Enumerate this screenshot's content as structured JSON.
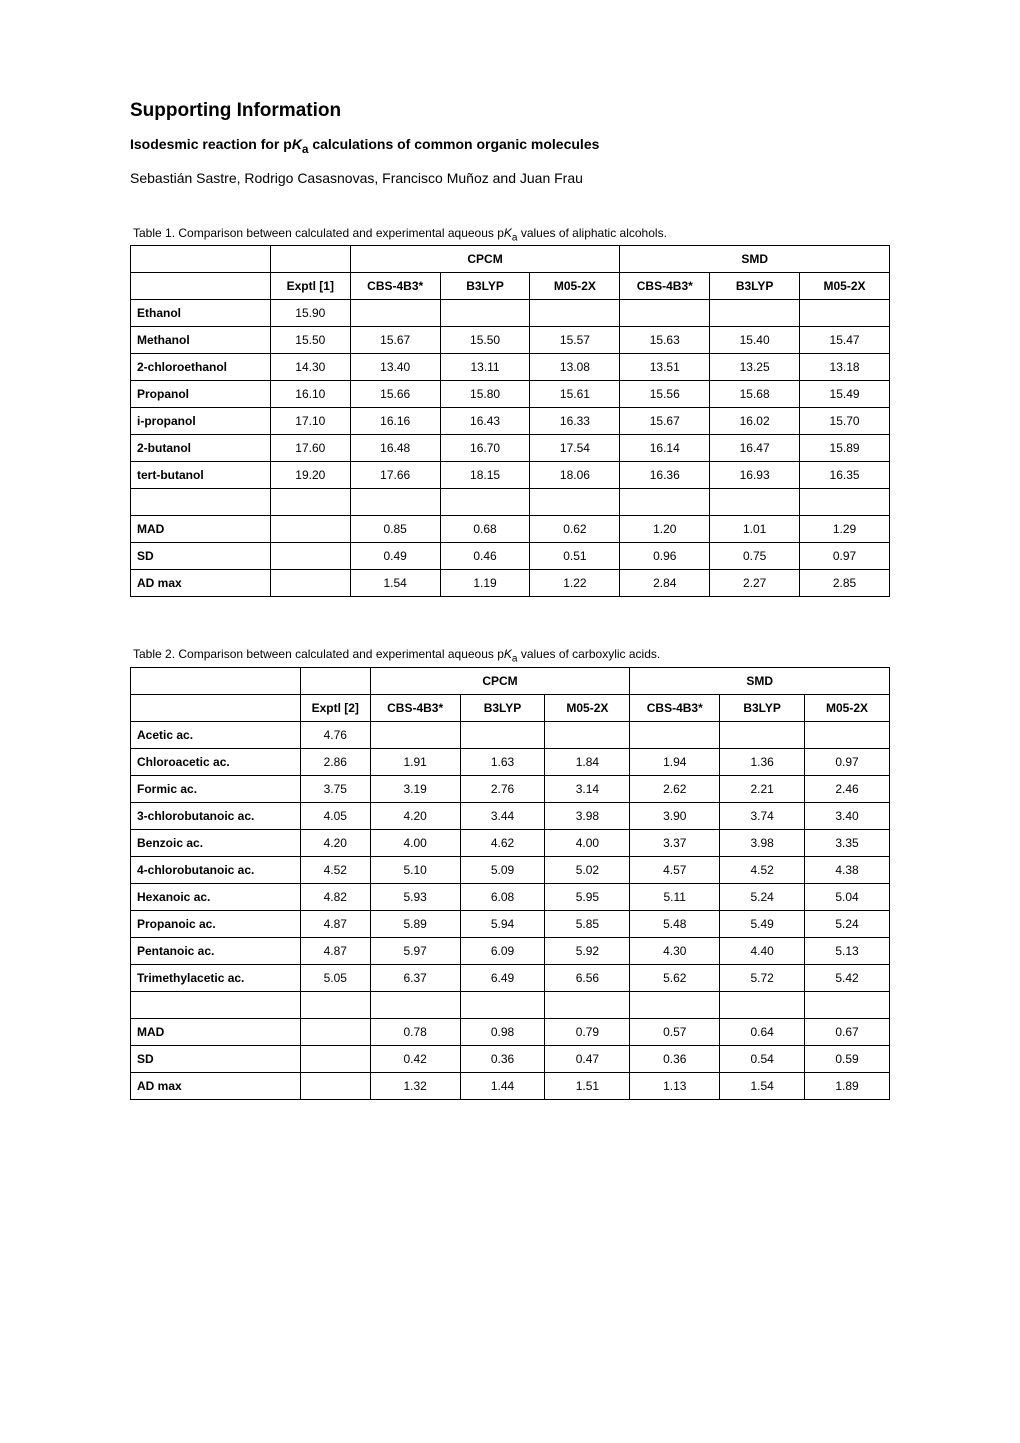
{
  "heading": "Supporting Information",
  "subtitle_prefix": "Isodesmic reaction for p",
  "subtitle_ka": "K",
  "subtitle_sub": "a",
  "subtitle_suffix": " calculations of common organic molecules",
  "authors": "Sebastián Sastre, Rodrigo Casasnovas, Francisco Muñoz and Juan Frau",
  "table1": {
    "caption_prefix": "Table 1. Comparison between calculated and experimental aqueous p",
    "caption_ka": "K",
    "caption_sub": "a",
    "caption_suffix": " values of aliphatic alcohols.",
    "group_cpcm": "CPCM",
    "group_smd": "SMD",
    "col_exptl": "Exptl [1]",
    "col_cbs": "CBS-4B3*",
    "col_b3lyp": "B3LYP",
    "col_m052x": "M05-2X",
    "rows": [
      {
        "name": "Ethanol",
        "exptl": "15.90",
        "c1": "",
        "c2": "",
        "c3": "",
        "s1": "",
        "s2": "",
        "s3": ""
      },
      {
        "name": "Methanol",
        "exptl": "15.50",
        "c1": "15.67",
        "c2": "15.50",
        "c3": "15.57",
        "s1": "15.63",
        "s2": "15.40",
        "s3": "15.47"
      },
      {
        "name": "2-chloroethanol",
        "exptl": "14.30",
        "c1": "13.40",
        "c2": "13.11",
        "c3": "13.08",
        "s1": "13.51",
        "s2": "13.25",
        "s3": "13.18"
      },
      {
        "name": "Propanol",
        "exptl": "16.10",
        "c1": "15.66",
        "c2": "15.80",
        "c3": "15.61",
        "s1": "15.56",
        "s2": "15.68",
        "s3": "15.49"
      },
      {
        "name": "i-propanol",
        "exptl": "17.10",
        "c1": "16.16",
        "c2": "16.43",
        "c3": "16.33",
        "s1": "15.67",
        "s2": "16.02",
        "s3": "15.70"
      },
      {
        "name": "2-butanol",
        "exptl": "17.60",
        "c1": "16.48",
        "c2": "16.70",
        "c3": "17.54",
        "s1": "16.14",
        "s2": "16.47",
        "s3": "15.89"
      },
      {
        "name": "tert-butanol",
        "exptl": "19.20",
        "c1": "17.66",
        "c2": "18.15",
        "c3": "18.06",
        "s1": "16.36",
        "s2": "16.93",
        "s3": "16.35"
      }
    ],
    "stats": [
      {
        "name": "MAD",
        "c1": "0.85",
        "c2": "0.68",
        "c3": "0.62",
        "s1": "1.20",
        "s2": "1.01",
        "s3": "1.29"
      },
      {
        "name": "SD",
        "c1": "0.49",
        "c2": "0.46",
        "c3": "0.51",
        "s1": "0.96",
        "s2": "0.75",
        "s3": "0.97"
      },
      {
        "name": "AD max",
        "c1": "1.54",
        "c2": "1.19",
        "c3": "1.22",
        "s1": "2.84",
        "s2": "2.27",
        "s3": "2.85"
      }
    ]
  },
  "table2": {
    "caption_prefix": "Table 2. Comparison between calculated and experimental aqueous p",
    "caption_ka": "K",
    "caption_sub": "a",
    "caption_suffix": " values of carboxylic acids.",
    "group_cpcm": "CPCM",
    "group_smd": "SMD",
    "col_exptl": "Exptl [2]",
    "col_cbs": "CBS-4B3*",
    "col_b3lyp": "B3LYP",
    "col_m052x": "M05-2X",
    "rows": [
      {
        "name": "Acetic ac.",
        "exptl": "4.76",
        "c1": "",
        "c2": "",
        "c3": "",
        "s1": "",
        "s2": "",
        "s3": ""
      },
      {
        "name": "Chloroacetic ac.",
        "exptl": "2.86",
        "c1": "1.91",
        "c2": "1.63",
        "c3": "1.84",
        "s1": "1.94",
        "s2": "1.36",
        "s3": "0.97"
      },
      {
        "name": "Formic ac.",
        "exptl": "3.75",
        "c1": "3.19",
        "c2": "2.76",
        "c3": "3.14",
        "s1": "2.62",
        "s2": "2.21",
        "s3": "2.46"
      },
      {
        "name": "3-chlorobutanoic ac.",
        "exptl": "4.05",
        "c1": "4.20",
        "c2": "3.44",
        "c3": "3.98",
        "s1": "3.90",
        "s2": "3.74",
        "s3": "3.40"
      },
      {
        "name": "Benzoic ac.",
        "exptl": "4.20",
        "c1": "4.00",
        "c2": "4.62",
        "c3": "4.00",
        "s1": "3.37",
        "s2": "3.98",
        "s3": "3.35"
      },
      {
        "name": "4-chlorobutanoic ac.",
        "exptl": "4.52",
        "c1": "5.10",
        "c2": "5.09",
        "c3": "5.02",
        "s1": "4.57",
        "s2": "4.52",
        "s3": "4.38"
      },
      {
        "name": "Hexanoic ac.",
        "exptl": "4.82",
        "c1": "5.93",
        "c2": "6.08",
        "c3": "5.95",
        "s1": "5.11",
        "s2": "5.24",
        "s3": "5.04"
      },
      {
        "name": "Propanoic ac.",
        "exptl": "4.87",
        "c1": "5.89",
        "c2": "5.94",
        "c3": "5.85",
        "s1": "5.48",
        "s2": "5.49",
        "s3": "5.24"
      },
      {
        "name": "Pentanoic ac.",
        "exptl": "4.87",
        "c1": "5.97",
        "c2": "6.09",
        "c3": "5.92",
        "s1": "4.30",
        "s2": "4.40",
        "s3": "5.13"
      },
      {
        "name": "Trimethylacetic ac.",
        "exptl": "5.05",
        "c1": "6.37",
        "c2": "6.49",
        "c3": "6.56",
        "s1": "5.62",
        "s2": "5.72",
        "s3": "5.42"
      }
    ],
    "stats": [
      {
        "name": "MAD",
        "c1": "0.78",
        "c2": "0.98",
        "c3": "0.79",
        "s1": "0.57",
        "s2": "0.64",
        "s3": "0.67"
      },
      {
        "name": "SD",
        "c1": "0.42",
        "c2": "0.36",
        "c3": "0.47",
        "s1": "0.36",
        "s2": "0.54",
        "s3": "0.59"
      },
      {
        "name": "AD max",
        "c1": "1.32",
        "c2": "1.44",
        "c3": "1.51",
        "s1": "1.13",
        "s2": "1.54",
        "s3": "1.89"
      }
    ]
  },
  "layout": {
    "col_widths_t1": [
      "140px",
      "80px",
      "90px",
      "90px",
      "90px",
      "90px",
      "90px",
      "90px"
    ],
    "col_widths_t2": [
      "170px",
      "70px",
      "90px",
      "85px",
      "85px",
      "90px",
      "85px",
      "85px"
    ]
  }
}
